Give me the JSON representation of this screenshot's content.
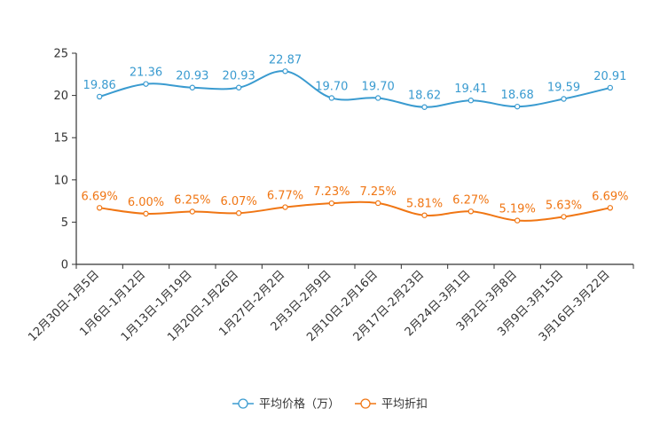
{
  "chart_data": {
    "type": "line",
    "title": "",
    "xlabel": "",
    "ylabel": "",
    "ylim": [
      0,
      25
    ],
    "yticks": [
      0,
      5,
      10,
      15,
      20,
      25
    ],
    "smooth": true,
    "legend_position": "bottom",
    "categories": [
      "12月30日-1月5日",
      "1月6日-1月12日",
      "1月13日-1月19日",
      "1月20日-1月26日",
      "1月27日-2月2日",
      "2月3日-2月9日",
      "2月10日-2月16日",
      "2月17日-2月23日",
      "2月24日-3月1日",
      "3月2日-3月8日",
      "3月9日-3月15日",
      "3月16日-3月22日"
    ],
    "series": [
      {
        "name": "平均价格（万）",
        "color": "#3a9bd0",
        "values": [
          19.86,
          21.36,
          20.93,
          20.93,
          22.87,
          19.7,
          19.7,
          18.62,
          19.41,
          18.68,
          19.59,
          20.91
        ],
        "labels": [
          "19.86",
          "21.36",
          "20.93",
          "20.93",
          "22.87",
          "19.70",
          "19.70",
          "18.62",
          "19.41",
          "18.68",
          "19.59",
          "20.91"
        ]
      },
      {
        "name": "平均折扣",
        "color": "#f07614",
        "values": [
          6.69,
          6.0,
          6.25,
          6.07,
          6.77,
          7.23,
          7.25,
          5.81,
          6.27,
          5.19,
          5.63,
          6.69
        ],
        "labels": [
          "6.69%",
          "6.00%",
          "6.25%",
          "6.07%",
          "6.77%",
          "7.23%",
          "7.25%",
          "5.81%",
          "6.27%",
          "5.19%",
          "5.63%",
          "6.69%"
        ]
      }
    ]
  }
}
